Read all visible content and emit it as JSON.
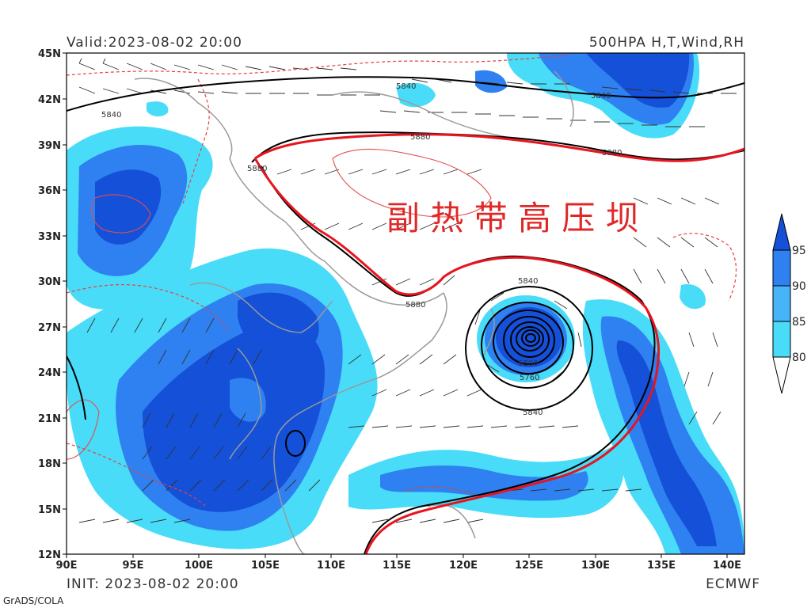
{
  "header": {
    "valid": "Valid:2023-08-02 20:00",
    "product": "500HPA H,T,Wind,RH"
  },
  "footer": {
    "init": "INIT: 2023-08-02 20:00",
    "source": "ECMWF",
    "software": "GrADS/COLA"
  },
  "annotation": "副 热 带 高 压 坝",
  "axes": {
    "lon_labels": [
      "90E",
      "95E",
      "100E",
      "105E",
      "110E",
      "115E",
      "120E",
      "125E",
      "130E",
      "135E",
      "140E"
    ],
    "lat_labels": [
      "45N",
      "42N",
      "39N",
      "36N",
      "33N",
      "30N",
      "27N",
      "24N",
      "21N",
      "18N",
      "15N",
      "12N"
    ]
  },
  "height_contour_labels": [
    "5840",
    "5840",
    "5840",
    "5880",
    "5880",
    "5880",
    "5880",
    "5840",
    "5800",
    "5760",
    "5840"
  ],
  "colorbar": {
    "ticks": [
      "95",
      "90",
      "85",
      "80"
    ],
    "colors": [
      "#1450d8",
      "#2f80f0",
      "#45b4f8",
      "#48dcf8"
    ]
  },
  "colors": {
    "contour": "#000000",
    "ridge": "#e8141e",
    "temperature": "#e84040",
    "annotation": "#e02828"
  }
}
